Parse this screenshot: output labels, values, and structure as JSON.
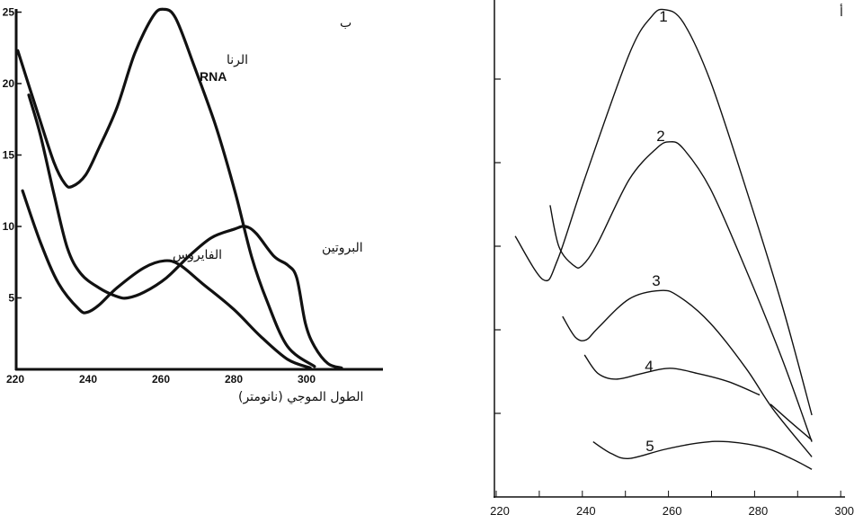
{
  "chart_data": [
    {
      "type": "line",
      "panel_label": "ب",
      "xlabel": "الطول الموجي  (نانومتر)",
      "ylabel": "",
      "xlim": [
        220,
        322
      ],
      "ylim": [
        0,
        25.5
      ],
      "xticks": [
        220,
        240,
        260,
        280,
        300
      ],
      "yticks": [
        5,
        10,
        15,
        20,
        25
      ],
      "grid": false,
      "line_color": "#111111",
      "series": [
        {
          "name": "الرنا",
          "name_en": "RNA",
          "x": [
            220.7,
            225.7,
            230.6,
            233.6,
            235.6,
            239.3,
            243.0,
            247.9,
            252.8,
            257.8,
            260.7,
            264.0,
            268.9,
            275.1,
            280.5,
            284.9,
            289.1,
            294.8,
            302.2
          ],
          "y": [
            22.3,
            18.3,
            14.5,
            13.0,
            12.8,
            13.6,
            15.5,
            18.3,
            22.1,
            24.7,
            25.2,
            24.6,
            21.4,
            17.0,
            12.3,
            7.9,
            4.8,
            1.6,
            0.2
          ]
        },
        {
          "name": "البروتين",
          "x": [
            223.7,
            226.9,
            230.6,
            234.3,
            238.0,
            243.0,
            247.9,
            250.9,
            255.4,
            261.5,
            267.6,
            273.8,
            280.0,
            283.2,
            286.2,
            291.1,
            294.8,
            297.3,
            299.7,
            302.2,
            305.9,
            309.6
          ],
          "y": [
            19.2,
            16.4,
            12.3,
            8.5,
            6.7,
            5.7,
            5.1,
            5.0,
            5.4,
            6.4,
            7.9,
            9.2,
            9.8,
            10.0,
            9.5,
            7.9,
            7.3,
            6.4,
            3.2,
            1.6,
            0.4,
            0.1
          ]
        },
        {
          "name": "الفايروس",
          "x": [
            222.0,
            226.9,
            231.9,
            237.5,
            239.8,
            243.0,
            247.9,
            255.3,
            261.0,
            265.2,
            271.4,
            280.0,
            287.4,
            294.8,
            301.0
          ],
          "y": [
            12.5,
            8.9,
            6.0,
            4.2,
            4.0,
            4.5,
            5.7,
            7.1,
            7.6,
            7.3,
            6.0,
            4.2,
            2.3,
            0.7,
            0.1
          ]
        }
      ]
    },
    {
      "type": "line",
      "panel_label": "أ",
      "xlabel": "",
      "ylabel": "",
      "xlim": [
        220,
        301
      ],
      "ylim": [
        0,
        5.95
      ],
      "xticks": [
        220,
        240,
        260,
        280,
        300
      ],
      "xminor_step": 10,
      "yticks_unlabeled": [
        1,
        2,
        3,
        4,
        5
      ],
      "grid": false,
      "line_color": "#111111",
      "series": [
        {
          "name": "1",
          "x": [
            224.4,
            230.9,
            234.2,
            240.5,
            250.9,
            256.1,
            259.2,
            263.4,
            269.7,
            278.0,
            286.4,
            293.3
          ],
          "y": [
            3.12,
            2.6,
            2.83,
            3.8,
            5.3,
            5.75,
            5.83,
            5.68,
            4.98,
            3.69,
            2.29,
            0.98
          ]
        },
        {
          "name": "2",
          "x": [
            232.5,
            234.6,
            238.0,
            240.0,
            243.6,
            250.9,
            257.2,
            260.3,
            263.4,
            269.7,
            278.0,
            286.4,
            293.3
          ],
          "y": [
            3.49,
            2.99,
            2.77,
            2.77,
            3.04,
            3.8,
            4.17,
            4.25,
            4.17,
            3.69,
            2.72,
            1.65,
            0.66
          ]
        },
        {
          "name": "3",
          "x": [
            235.4,
            238.4,
            240.9,
            243.6,
            250.9,
            258.2,
            262.4,
            269.7,
            278.0,
            284.3,
            293.3
          ],
          "y": [
            2.16,
            1.91,
            1.88,
            2.02,
            2.37,
            2.47,
            2.4,
            2.08,
            1.54,
            1.05,
            0.48
          ]
        },
        {
          "name": "4",
          "x": [
            240.5,
            243.6,
            247.8,
            254.0,
            260.3,
            266.6,
            273.9,
            281.2
          ],
          "y": [
            1.7,
            1.48,
            1.41,
            1.48,
            1.54,
            1.48,
            1.38,
            1.22
          ],
          "x2": [
            283.7,
            288.5,
            293.3
          ],
          "y2": [
            1.11,
            0.89,
            0.68
          ]
        },
        {
          "name": "5",
          "x": [
            242.5,
            246.7,
            250.9,
            259.2,
            267.6,
            273.9,
            282.2,
            288.5,
            293.3
          ],
          "y": [
            0.66,
            0.52,
            0.46,
            0.57,
            0.65,
            0.66,
            0.59,
            0.46,
            0.33
          ]
        }
      ]
    }
  ]
}
